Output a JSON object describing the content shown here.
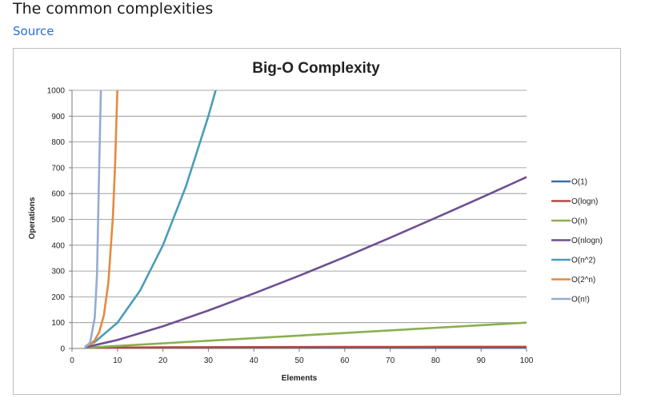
{
  "page": {
    "heading": "The common complexities",
    "source_link": "Source"
  },
  "chart_data": {
    "type": "line",
    "title": "Big-O Complexity",
    "xlabel": "Elements",
    "ylabel": "Operations",
    "xlim": [
      0,
      100
    ],
    "ylim": [
      0,
      1000
    ],
    "x_ticks": [
      0,
      10,
      20,
      30,
      40,
      50,
      60,
      70,
      80,
      90,
      100
    ],
    "y_ticks": [
      0,
      100,
      200,
      300,
      400,
      500,
      600,
      700,
      800,
      900,
      1000
    ],
    "grid": "horizontal",
    "legend_position": "right",
    "series": [
      {
        "name": "O(1)",
        "color": "#3d6da8",
        "x": [
          3,
          100
        ],
        "y": [
          1,
          1
        ]
      },
      {
        "name": "O(logn)",
        "color": "#b04a44",
        "x": [
          3,
          10,
          20,
          30,
          40,
          50,
          60,
          70,
          80,
          90,
          100
        ],
        "y": [
          1.6,
          3.3,
          4.3,
          4.9,
          5.3,
          5.6,
          5.9,
          6.1,
          6.3,
          6.5,
          6.6
        ]
      },
      {
        "name": "O(n)",
        "color": "#8aaf4e",
        "x": [
          3,
          100
        ],
        "y": [
          3,
          100
        ]
      },
      {
        "name": "O(nlogn)",
        "color": "#6e4f93",
        "x": [
          3,
          10,
          20,
          30,
          40,
          50,
          60,
          70,
          80,
          90,
          100
        ],
        "y": [
          4.8,
          33,
          86,
          147,
          213,
          282,
          354,
          429,
          506,
          584,
          664
        ]
      },
      {
        "name": "O(n^2)",
        "color": "#4a9db8",
        "x": [
          3,
          5,
          10,
          15,
          20,
          25,
          30,
          31.6
        ],
        "y": [
          9,
          25,
          100,
          225,
          400,
          625,
          900,
          1000
        ]
      },
      {
        "name": "O(2^n)",
        "color": "#e58a3e",
        "x": [
          3,
          4,
          5,
          6,
          7,
          8,
          9,
          9.5,
          9.97
        ],
        "y": [
          8,
          16,
          32,
          64,
          128,
          256,
          512,
          724,
          1000
        ]
      },
      {
        "name": "O(n!)",
        "color": "#94abd4",
        "x": [
          3,
          4,
          5,
          5.5,
          6,
          6.2,
          6.35
        ],
        "y": [
          6,
          24,
          120,
          287,
          720,
          880,
          1000
        ]
      }
    ]
  }
}
